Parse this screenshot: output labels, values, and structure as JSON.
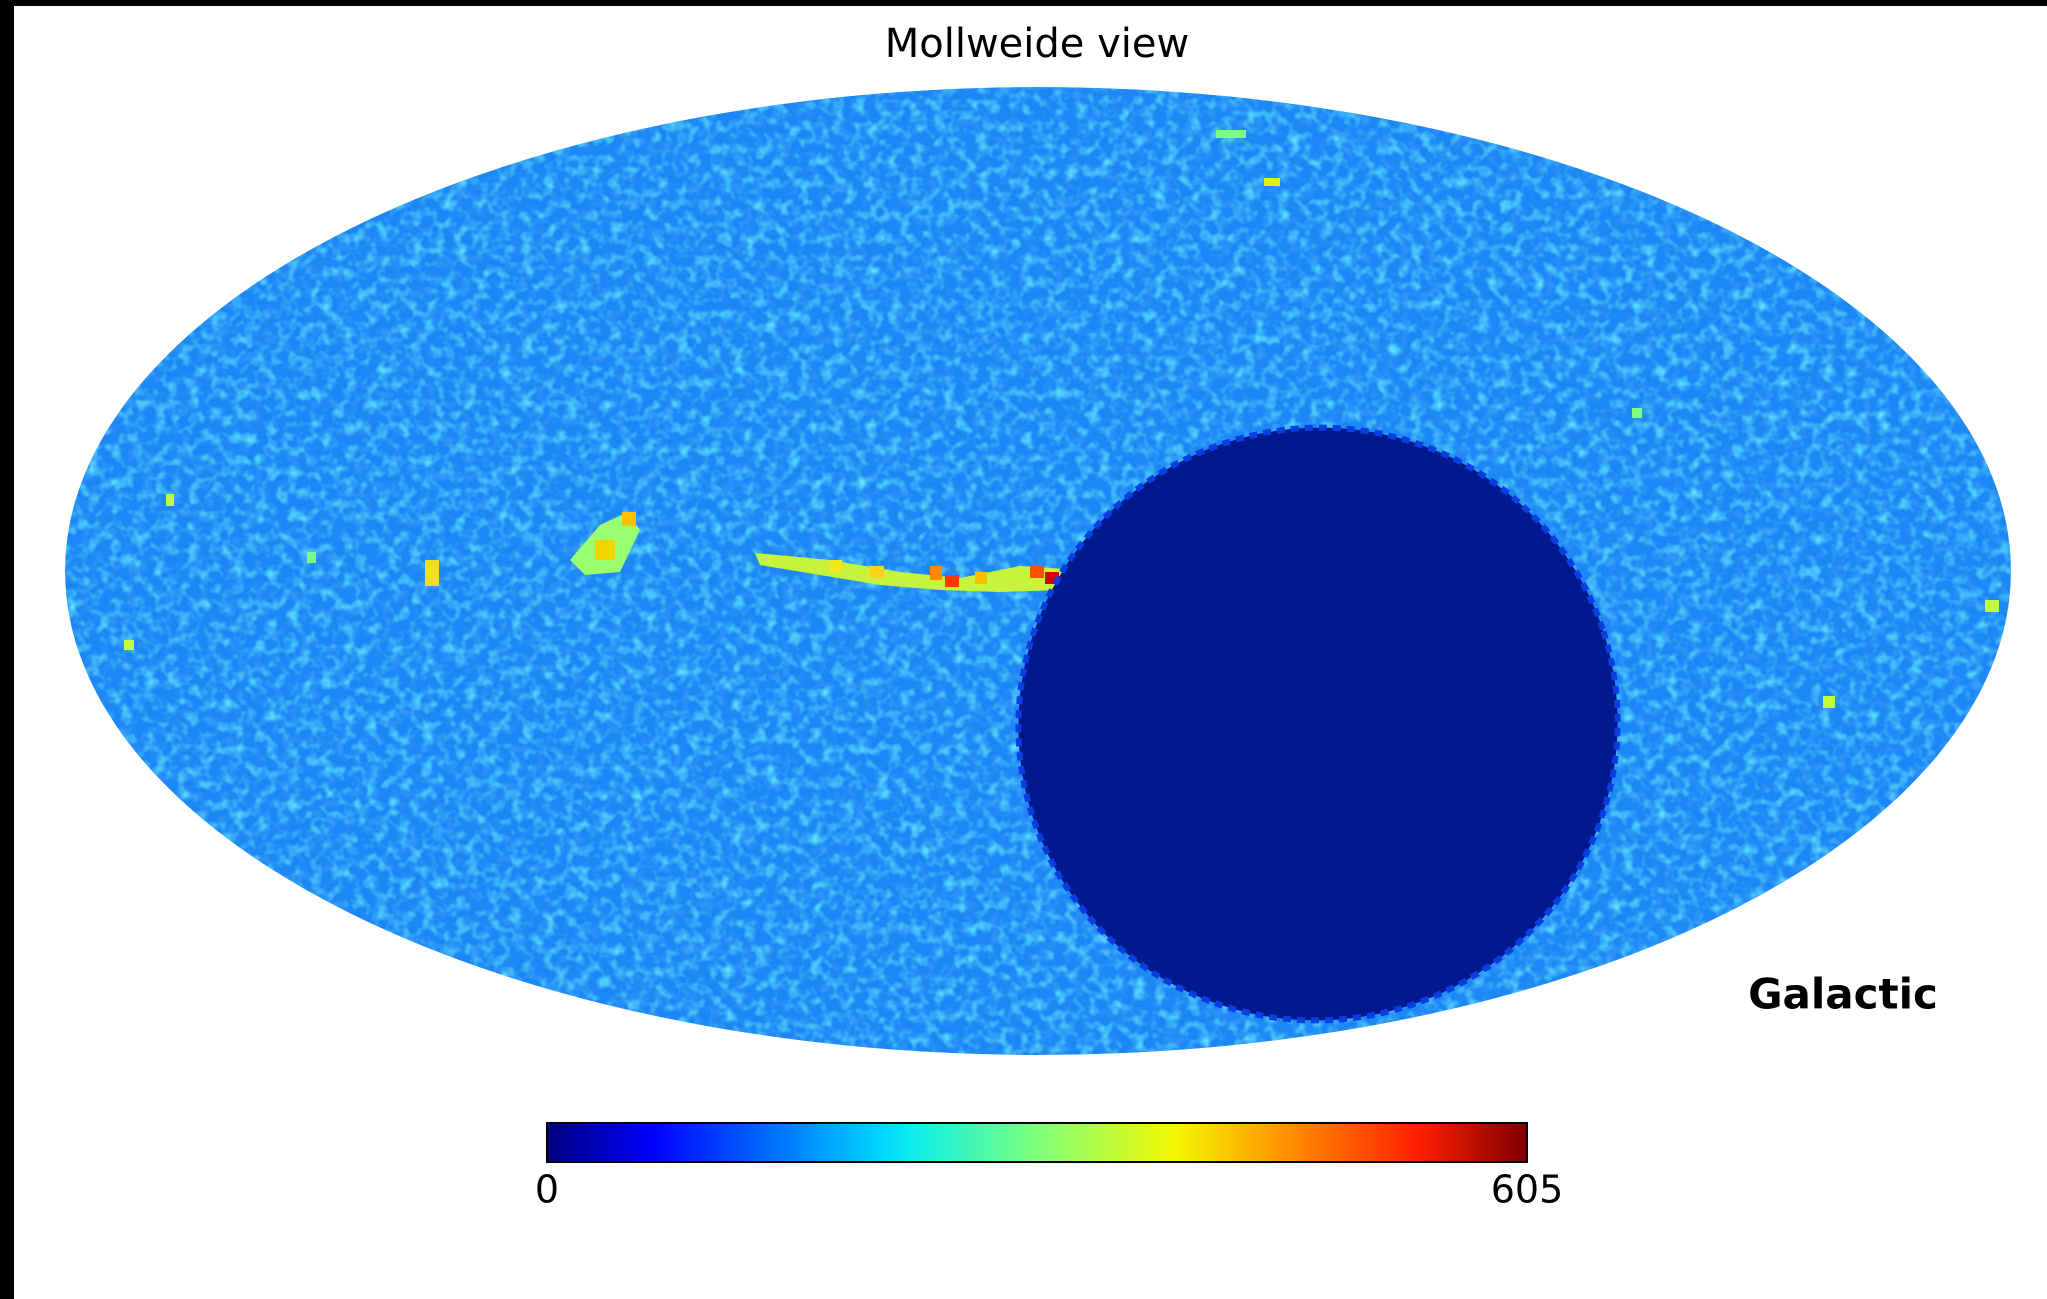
{
  "title": "Mollweide view",
  "coord_label": "Galactic",
  "colorbar": {
    "lim": [
      0,
      605
    ],
    "ticks": [
      0,
      605
    ]
  }
}
